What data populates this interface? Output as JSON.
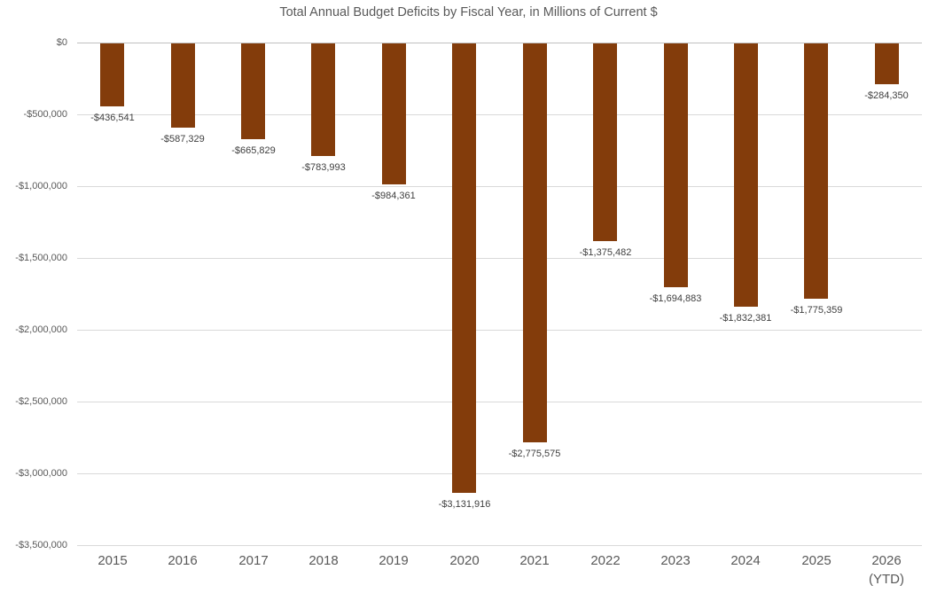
{
  "chart_data": {
    "type": "bar",
    "title": "Total Annual Budget Deficits by Fiscal Year, in Millions of Current $",
    "xlabel": "",
    "ylabel": "",
    "categories": [
      "2015",
      "2016",
      "2017",
      "2018",
      "2019",
      "2020",
      "2021",
      "2022",
      "2023",
      "2024",
      "2025",
      "2026\n(YTD)"
    ],
    "values": [
      -436541,
      -587329,
      -665829,
      -783993,
      -984361,
      -3131916,
      -2775575,
      -1375482,
      -1694883,
      -1832381,
      -1775359,
      -284350
    ],
    "value_labels": [
      "-$436,541",
      "-$587,329",
      "-$665,829",
      "-$783,993",
      "-$984,361",
      "-$3,131,916",
      "-$2,775,575",
      "-$1,375,482",
      "-$1,694,883",
      "-$1,832,381",
      "-$1,775,359",
      "-$284,350"
    ],
    "y_ticks": [
      "$0",
      "-$500,000",
      "-$1,000,000",
      "-$1,500,000",
      "-$2,000,000",
      "-$2,500,000",
      "-$3,000,000",
      "-$3,500,000"
    ],
    "ylim": [
      -3500000,
      0
    ],
    "grid": "horizontal-only",
    "legend": "none",
    "colors": {
      "bar": "#833C0B",
      "gridline": "#D9D9D9",
      "zero_line": "#BFBFBF",
      "title_text": "#595959",
      "axis_text": "#595959",
      "data_label_text": "#404040",
      "background": "#FFFFFF"
    }
  }
}
